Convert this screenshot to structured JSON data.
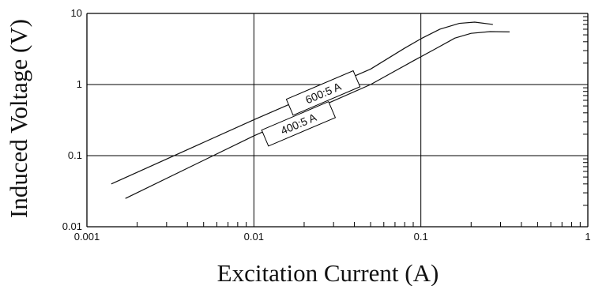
{
  "chart_data": {
    "type": "line",
    "title": "",
    "xlabel": "Excitation Current (A)",
    "ylabel": "Induced Voltage (V)",
    "x_scale": "log",
    "y_scale": "log",
    "xlim": [
      0.001,
      1
    ],
    "ylim": [
      0.01,
      10
    ],
    "grid": "decades",
    "x_tick_labels": [
      "0.001",
      "0.01",
      "0.1",
      "1"
    ],
    "y_tick_labels": [
      "0.01",
      "0.1",
      "1",
      "10"
    ],
    "series": [
      {
        "name": "600:5 A",
        "x": [
          0.0014,
          0.01,
          0.05,
          0.08,
          0.1,
          0.13,
          0.17,
          0.21,
          0.27
        ],
        "y": [
          0.04,
          0.32,
          1.65,
          3.25,
          4.4,
          6.0,
          7.25,
          7.55,
          7.0
        ]
      },
      {
        "name": "400:5 A",
        "x": [
          0.0017,
          0.01,
          0.05,
          0.09,
          0.12,
          0.16,
          0.2,
          0.26,
          0.34
        ],
        "y": [
          0.025,
          0.19,
          1.0,
          2.15,
          3.1,
          4.5,
          5.25,
          5.55,
          5.5
        ]
      }
    ],
    "annotations": [
      "600:5 A",
      "400:5 A"
    ],
    "colors": {
      "background": "#ffffff",
      "axis": "#000000",
      "grid": "#000000",
      "series": "#111111",
      "text": "#111111"
    }
  }
}
